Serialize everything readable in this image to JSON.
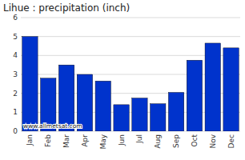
{
  "chart_data": {
    "type": "bar",
    "title": "Lihue : precipitation (inch)",
    "categories": [
      "Jan",
      "Feb",
      "Mar",
      "Apr",
      "May",
      "Jun",
      "Jul",
      "Aug",
      "Sep",
      "Oct",
      "Nov",
      "Dec"
    ],
    "values": [
      5.0,
      2.8,
      3.5,
      3.0,
      2.65,
      1.4,
      1.75,
      1.45,
      2.05,
      3.75,
      4.65,
      4.4
    ],
    "color": "#0033cc",
    "ylim": [
      0,
      6
    ],
    "yticks": [
      0,
      1,
      2,
      3,
      4,
      5,
      6
    ],
    "grid": true,
    "annotations": [
      "www.allmetsat.com"
    ]
  }
}
